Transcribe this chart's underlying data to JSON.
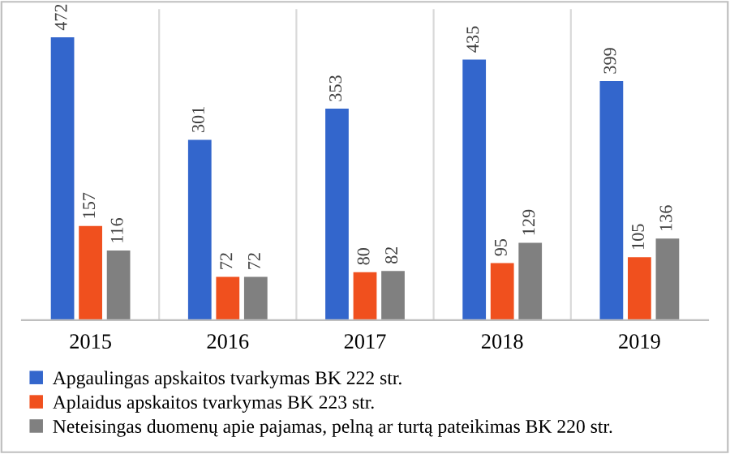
{
  "chart_data": {
    "type": "bar",
    "categories": [
      "2015",
      "2016",
      "2017",
      "2018",
      "2019"
    ],
    "series": [
      {
        "name": "Apgaulingas apskaitos tvarkymas BK 222 str.",
        "color": "#3366cc",
        "values": [
          472,
          301,
          353,
          435,
          399
        ]
      },
      {
        "name": "Aplaidus apskaitos tvarkymas BK 223 str.",
        "color": "#f0501e",
        "values": [
          157,
          72,
          80,
          95,
          105
        ]
      },
      {
        "name": "Neteisingas duomenų apie pajamas, pelną ar turtą pateikimas BK 220 str.",
        "color": "#808080",
        "values": [
          116,
          72,
          82,
          129,
          136
        ]
      }
    ],
    "data_labels": true,
    "grid": "x",
    "legend": "bottom"
  }
}
